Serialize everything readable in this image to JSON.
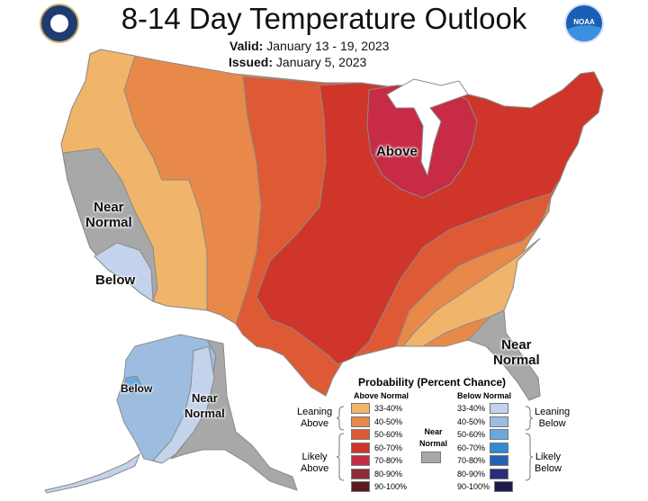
{
  "header": {
    "title": "8-14 Day Temperature Outlook",
    "valid_label": "Valid:",
    "valid_value": "January 13 - 19, 2023",
    "issued_label": "Issued:",
    "issued_value": "January 5, 2023",
    "logo_right_text": "NOAA"
  },
  "map_labels": {
    "above": "Above",
    "near_normal_west": "Near\nNormal",
    "below_west": "Below",
    "near_normal_southeast": "Near\nNormal",
    "alaska_below": "Below",
    "alaska_near_normal": "Near\nNormal"
  },
  "legend": {
    "title": "Probability (Percent Chance)",
    "above_header": "Above Normal",
    "below_header": "Below Normal",
    "near_normal_label": "Near\nNormal",
    "leaning_above": "Leaning\nAbove",
    "likely_above": "Likely\nAbove",
    "leaning_below": "Leaning\nBelow",
    "likely_below": "Likely\nBelow",
    "above_rows": [
      {
        "label": "33-40%",
        "color": "#f0b56a"
      },
      {
        "label": "40-50%",
        "color": "#e8894a"
      },
      {
        "label": "50-60%",
        "color": "#de5a35"
      },
      {
        "label": "60-70%",
        "color": "#d0352a"
      },
      {
        "label": "70-80%",
        "color": "#c72b45"
      },
      {
        "label": "80-90%",
        "color": "#8e2a3a"
      },
      {
        "label": "90-100%",
        "color": "#5a1a22"
      }
    ],
    "below_rows": [
      {
        "label": "33-40%",
        "color": "#c3d3ec"
      },
      {
        "label": "40-50%",
        "color": "#9dbde0"
      },
      {
        "label": "50-60%",
        "color": "#6aa8e0"
      },
      {
        "label": "60-70%",
        "color": "#2f8ad8"
      },
      {
        "label": "70-80%",
        "color": "#1f63b5"
      },
      {
        "label": "80-90%",
        "color": "#2a2d7a"
      },
      {
        "label": "90-100%",
        "color": "#1d1a4e"
      }
    ],
    "near_normal_color": "#a8a8a8"
  }
}
